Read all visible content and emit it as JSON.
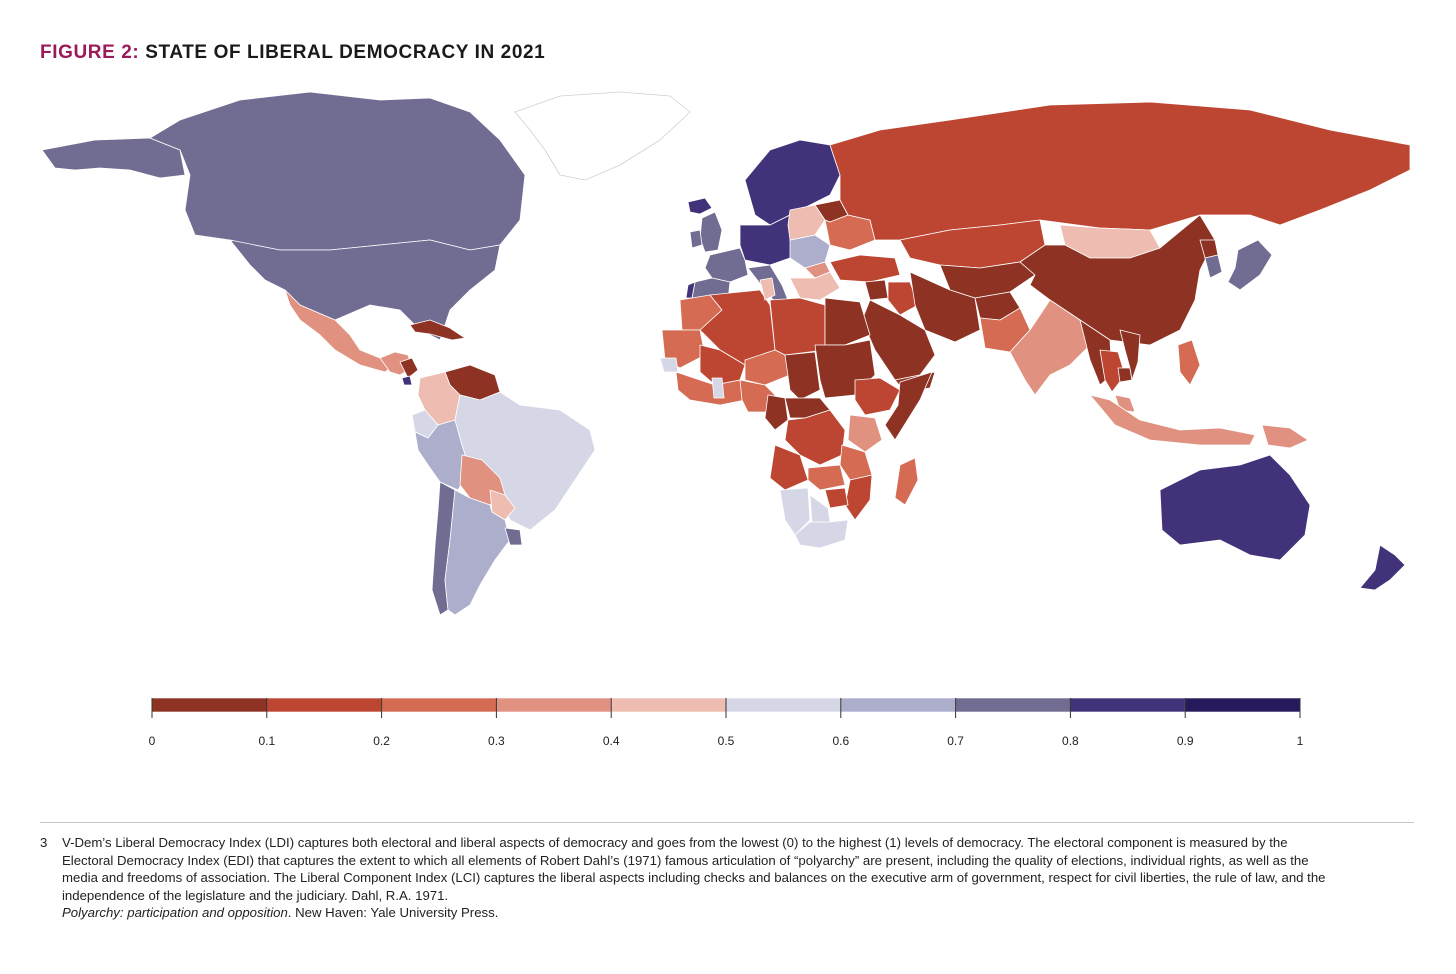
{
  "figure": {
    "title_prefix": "FIGURE 2:",
    "title_main": "STATE OF LIBERAL DEMOCRACY IN 2021"
  },
  "map": {
    "type": "choropleth",
    "measure": "Liberal Democracy Index",
    "year": 2021,
    "regions": [
      {
        "name": "Canada",
        "value": 0.75
      },
      {
        "name": "United States",
        "value": 0.72
      },
      {
        "name": "Alaska",
        "value": 0.72
      },
      {
        "name": "Greenland",
        "value": null
      },
      {
        "name": "Mexico",
        "value": 0.38
      },
      {
        "name": "Central America",
        "value": 0.32
      },
      {
        "name": "Nicaragua",
        "value": 0.03
      },
      {
        "name": "Costa Rica",
        "value": 0.88
      },
      {
        "name": "Cuba",
        "value": 0.05
      },
      {
        "name": "Venezuela",
        "value": 0.06
      },
      {
        "name": "Colombia",
        "value": 0.44
      },
      {
        "name": "Ecuador",
        "value": 0.55
      },
      {
        "name": "Peru",
        "value": 0.62
      },
      {
        "name": "Brazil",
        "value": 0.53
      },
      {
        "name": "Bolivia",
        "value": 0.33
      },
      {
        "name": "Paraguay",
        "value": 0.42
      },
      {
        "name": "Chile",
        "value": 0.74
      },
      {
        "name": "Argentina",
        "value": 0.63
      },
      {
        "name": "Uruguay",
        "value": 0.77
      },
      {
        "name": "Nordic countries",
        "value": 0.87
      },
      {
        "name": "Iceland",
        "value": 0.82
      },
      {
        "name": "United Kingdom",
        "value": 0.77
      },
      {
        "name": "Ireland",
        "value": 0.78
      },
      {
        "name": "Western Europe",
        "value": 0.83
      },
      {
        "name": "France",
        "value": 0.77
      },
      {
        "name": "Spain",
        "value": 0.74
      },
      {
        "name": "Portugal",
        "value": 0.82
      },
      {
        "name": "Italy",
        "value": 0.72
      },
      {
        "name": "Central Europe",
        "value": 0.64
      },
      {
        "name": "Poland",
        "value": 0.43
      },
      {
        "name": "Hungary",
        "value": 0.38
      },
      {
        "name": "Balkans",
        "value": 0.4
      },
      {
        "name": "Ukraine",
        "value": 0.26
      },
      {
        "name": "Belarus",
        "value": 0.08
      },
      {
        "name": "Russia",
        "value": 0.14
      },
      {
        "name": "Turkey",
        "value": 0.12
      },
      {
        "name": "Kazakhstan",
        "value": 0.13
      },
      {
        "name": "Central Asia",
        "value": 0.05
      },
      {
        "name": "Mongolia",
        "value": 0.44
      },
      {
        "name": "China",
        "value": 0.04
      },
      {
        "name": "North Korea",
        "value": 0.01
      },
      {
        "name": "South Korea",
        "value": 0.74
      },
      {
        "name": "Japan",
        "value": 0.73
      },
      {
        "name": "Afghanistan",
        "value": 0.02
      },
      {
        "name": "Iran",
        "value": 0.08
      },
      {
        "name": "Iraq",
        "value": 0.18
      },
      {
        "name": "Syria",
        "value": 0.01
      },
      {
        "name": "Saudi Arabia",
        "value": 0.01
      },
      {
        "name": "Yemen",
        "value": 0.02
      },
      {
        "name": "Pakistan",
        "value": 0.25
      },
      {
        "name": "India",
        "value": 0.34
      },
      {
        "name": "Myanmar",
        "value": 0.02
      },
      {
        "name": "Thailand",
        "value": 0.17
      },
      {
        "name": "Cambodia",
        "value": 0.09
      },
      {
        "name": "Vietnam",
        "value": 0.05
      },
      {
        "name": "Philippines",
        "value": 0.27
      },
      {
        "name": "Malaysia",
        "value": 0.33
      },
      {
        "name": "Indonesia",
        "value": 0.38
      },
      {
        "name": "Papua New Guinea",
        "value": 0.31
      },
      {
        "name": "Australia",
        "value": 0.84
      },
      {
        "name": "New Zealand",
        "value": 0.86
      },
      {
        "name": "Morocco",
        "value": 0.22
      },
      {
        "name": "Algeria",
        "value": 0.16
      },
      {
        "name": "Tunisia",
        "value": 0.44
      },
      {
        "name": "Libya",
        "value": 0.11
      },
      {
        "name": "Egypt",
        "value": 0.09
      },
      {
        "name": "Mauritania",
        "value": 0.24
      },
      {
        "name": "Mali",
        "value": 0.14
      },
      {
        "name": "Niger",
        "value": 0.28
      },
      {
        "name": "Chad",
        "value": 0.04
      },
      {
        "name": "Sudan",
        "value": 0.05
      },
      {
        "name": "Ethiopia",
        "value": 0.13
      },
      {
        "name": "Somalia",
        "value": 0.03
      },
      {
        "name": "West Africa",
        "value": 0.27
      },
      {
        "name": "Senegal",
        "value": 0.54
      },
      {
        "name": "Ghana",
        "value": 0.55
      },
      {
        "name": "Nigeria",
        "value": 0.27
      },
      {
        "name": "Cameroon",
        "value": 0.09
      },
      {
        "name": "Central African Republic",
        "value": 0.09
      },
      {
        "name": "DR Congo",
        "value": 0.12
      },
      {
        "name": "Kenya",
        "value": 0.32
      },
      {
        "name": "Tanzania",
        "value": 0.24
      },
      {
        "name": "Angola",
        "value": 0.15
      },
      {
        "name": "Zambia",
        "value": 0.28
      },
      {
        "name": "Mozambique",
        "value": 0.19
      },
      {
        "name": "Namibia",
        "value": 0.58
      },
      {
        "name": "Botswana",
        "value": 0.56
      },
      {
        "name": "Zimbabwe",
        "value": 0.13
      },
      {
        "name": "South Africa",
        "value": 0.57
      },
      {
        "name": "Madagascar",
        "value": 0.28
      }
    ]
  },
  "legend": {
    "type": "binned-color-scale",
    "min": 0,
    "max": 1,
    "bins": [
      {
        "from": 0.0,
        "to": 0.1,
        "color": "#8e3324"
      },
      {
        "from": 0.1,
        "to": 0.2,
        "color": "#bd4632"
      },
      {
        "from": 0.2,
        "to": 0.3,
        "color": "#d46b52"
      },
      {
        "from": 0.3,
        "to": 0.4,
        "color": "#e1917f"
      },
      {
        "from": 0.4,
        "to": 0.5,
        "color": "#eebcb0"
      },
      {
        "from": 0.5,
        "to": 0.6,
        "color": "#d5d7e6"
      },
      {
        "from": 0.6,
        "to": 0.7,
        "color": "#adaecc"
      },
      {
        "from": 0.7,
        "to": 0.8,
        "color": "#706c92"
      },
      {
        "from": 0.8,
        "to": 0.9,
        "color": "#41327a"
      },
      {
        "from": 0.9,
        "to": 1.0,
        "color": "#261a5c"
      }
    ],
    "tick_labels": [
      "0",
      "0.1",
      "0.2",
      "0.3",
      "0.4",
      "0.5",
      "0.6",
      "0.7",
      "0.8",
      "0.9",
      "1"
    ],
    "no_data_color": "#ffffff"
  },
  "footnote": {
    "number": "3",
    "text_main": "V-Dem’s Liberal Democracy Index (LDI) captures both electoral and liberal aspects of democracy and goes from the lowest (0) to the highest (1) levels of democracy. The electoral component is measured by the Electoral Democracy Index (EDI) that captures the extent to which all elements of Robert Dahl’s (1971) famous articulation of “polyarchy” are present, including the quality of elections, individual rights, as well as the media and freedoms of association. The Liberal Component Index (LCI) captures the liberal aspects including checks and balances on the executive arm of government, respect for civil liberties, the rule of law, and the independence of the legislature and the judiciary. Dahl, R.A. 1971.",
    "text_italic": "Polyarchy: participation and opposition",
    "text_end": ". New Haven: Yale University Press."
  }
}
